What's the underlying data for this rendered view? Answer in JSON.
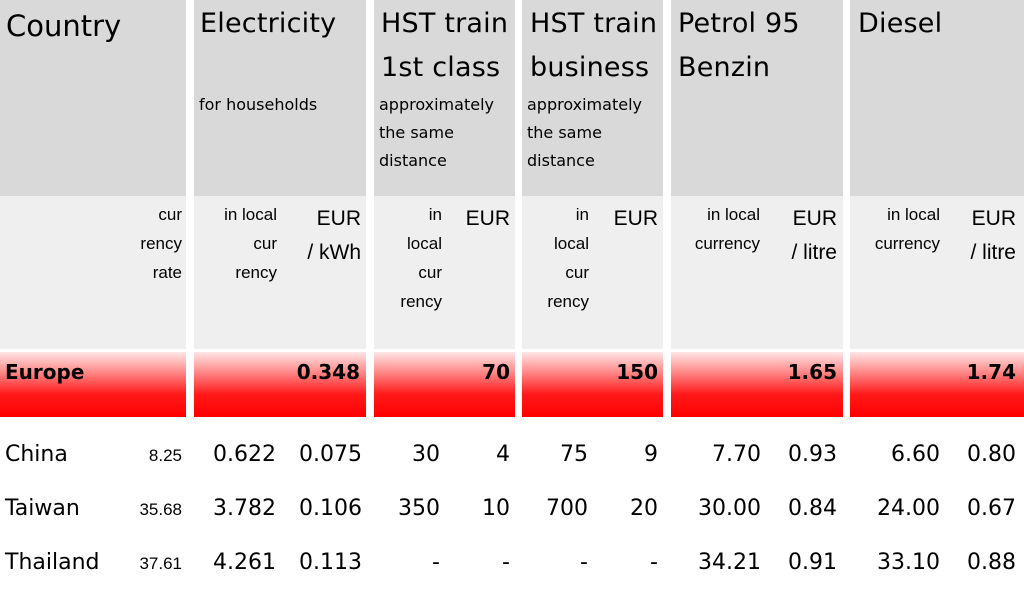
{
  "header": {
    "country": "Country",
    "electricity": {
      "title": "Electricity",
      "note": "for households"
    },
    "hst_first": {
      "title_line1": "HST train",
      "title_line2": "1st class",
      "note_line1": "approximately",
      "note_line2": "the same",
      "note_line3": "distance"
    },
    "hst_business": {
      "title_line1": "HST train",
      "title_line2": "business",
      "note_line1": "approximately",
      "note_line2": "the same",
      "note_line3": "distance"
    },
    "petrol": {
      "title_line1": "Petrol 95",
      "title_line2": "Benzin"
    },
    "diesel": {
      "title": "Diesel"
    }
  },
  "units": {
    "rate": [
      "cur",
      "rency",
      "rate"
    ],
    "elec_local": [
      "in local",
      "cur",
      "rency"
    ],
    "elec_eur": [
      "EUR",
      "/ kWh"
    ],
    "hst1_local": [
      "in",
      "local",
      "cur",
      "rency"
    ],
    "hst1_eur": "EUR",
    "hstb_local": [
      "in",
      "local",
      "cur",
      "rency"
    ],
    "hstb_eur": "EUR",
    "petrol_local": [
      "in local",
      "currency"
    ],
    "petrol_eur": [
      "EUR",
      "/ litre"
    ],
    "diesel_local": [
      "in local",
      "currency"
    ],
    "diesel_eur": [
      "EUR",
      "/ litre"
    ]
  },
  "europe": {
    "label": "Europe",
    "electricity": "0.348",
    "hst_first": "70",
    "hst_business": "150",
    "petrol": "1.65",
    "diesel": "1.74"
  },
  "rows": [
    {
      "country": "China",
      "rate": "8.25",
      "elec_local": "0.622",
      "elec_eur": "0.075",
      "hst1_local": "30",
      "hst1_eur": "4",
      "hstb_local": "75",
      "hstb_eur": "9",
      "petrol_local": "7.70",
      "petrol_eur": "0.93",
      "diesel_local": "6.60",
      "diesel_eur": "0.80"
    },
    {
      "country": "Taiwan",
      "rate": "35.68",
      "elec_local": "3.782",
      "elec_eur": "0.106",
      "hst1_local": "350",
      "hst1_eur": "10",
      "hstb_local": "700",
      "hstb_eur": "20",
      "petrol_local": "30.00",
      "petrol_eur": "0.84",
      "diesel_local": "24.00",
      "diesel_eur": "0.67"
    },
    {
      "country": "Thailand",
      "rate": "37.61",
      "elec_local": "4.261",
      "elec_eur": "0.113",
      "hst1_local": "-",
      "hst1_eur": "-",
      "hstb_local": "-",
      "hstb_eur": "-",
      "petrol_local": "34.21",
      "petrol_eur": "0.91",
      "diesel_local": "33.10",
      "diesel_eur": "0.88"
    }
  ]
}
